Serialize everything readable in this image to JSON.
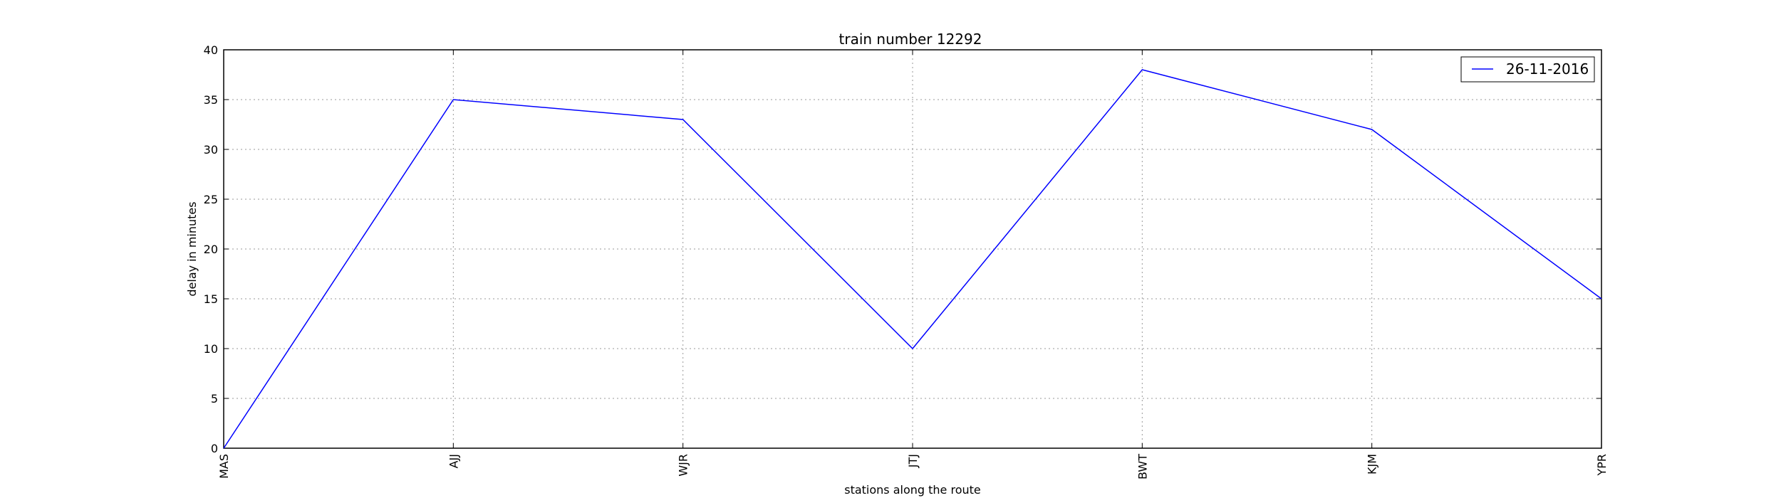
{
  "chart_data": {
    "type": "line",
    "title": "train number 12292",
    "xlabel": "stations along the route",
    "ylabel": "delay in minutes",
    "categories": [
      "MAS",
      "AJJ",
      "WJR",
      "JTJ",
      "BWT",
      "KJM",
      "YPR"
    ],
    "series": [
      {
        "name": "26-11-2016",
        "values": [
          0,
          35,
          33,
          10,
          38,
          32,
          15
        ],
        "color": "#0000ff"
      }
    ],
    "ylim": [
      0,
      40
    ],
    "yticks": [
      0,
      5,
      10,
      15,
      20,
      25,
      30,
      35,
      40
    ],
    "grid": true,
    "legend_position": "top-right"
  }
}
